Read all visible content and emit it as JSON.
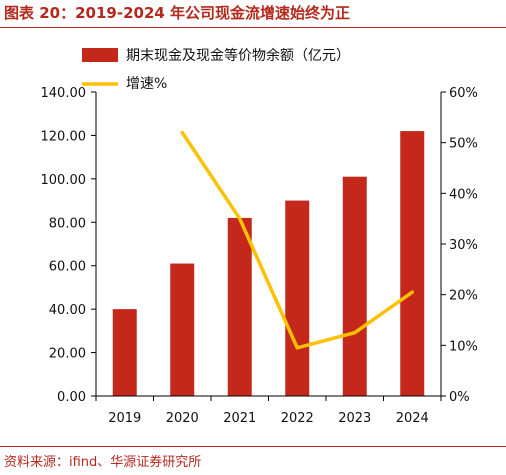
{
  "figure": {
    "title": "图表 20：2019-2024 年公司现金流增速始终为正",
    "source": "资料来源：ifind、华源证券研究所"
  },
  "colors": {
    "bar": "#C4281B",
    "line": "#FFC000",
    "accent": "#B5281C",
    "axis": "#000000"
  },
  "chart_data": {
    "type": "bar",
    "categories": [
      "2019",
      "2020",
      "2021",
      "2022",
      "2023",
      "2024"
    ],
    "series": [
      {
        "name": "期末现金及现金等价物余额（亿元）",
        "type": "bar",
        "axis": "left",
        "values": [
          40,
          61,
          82,
          90,
          101,
          122
        ]
      },
      {
        "name": "增速%",
        "type": "line",
        "axis": "right",
        "values": [
          null,
          52,
          35,
          9.5,
          12.5,
          20.5
        ]
      }
    ],
    "y_left": {
      "min": 0,
      "max": 140,
      "ticks": [
        "0.00",
        "20.00",
        "40.00",
        "60.00",
        "80.00",
        "100.00",
        "120.00",
        "140.00"
      ]
    },
    "y_right": {
      "min": 0,
      "max": 60,
      "ticks": [
        "0%",
        "10%",
        "20%",
        "30%",
        "40%",
        "50%",
        "60%"
      ]
    },
    "legend": "top",
    "grid": false
  }
}
